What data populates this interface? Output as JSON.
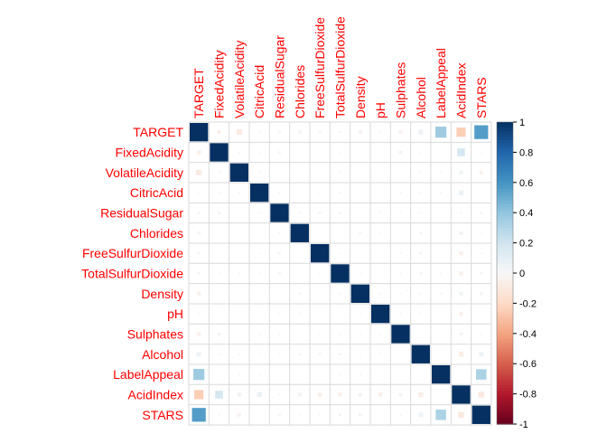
{
  "chart_data": {
    "type": "heatmap",
    "variables": [
      "TARGET",
      "FixedAcidity",
      "VolatileAcidity",
      "CitricAcid",
      "ResidualSugar",
      "Chlorides",
      "FreeSulfurDioxide",
      "TotalSulfurDioxide",
      "Density",
      "pH",
      "Sulphates",
      "Alcohol",
      "LabelAppeal",
      "AcidIndex",
      "STARS"
    ],
    "matrix": [
      [
        1,
        -0.05,
        -0.09,
        0.01,
        0.02,
        -0.03,
        0.02,
        0.02,
        -0.04,
        -0.01,
        -0.04,
        0.06,
        0.36,
        -0.25,
        0.56
      ],
      [
        -0.05,
        1,
        0.01,
        0.01,
        -0.02,
        0,
        0,
        -0.01,
        0,
        0,
        0.03,
        -0.01,
        0,
        0.18,
        -0.01
      ],
      [
        -0.09,
        0.01,
        1,
        0.01,
        0,
        0,
        0,
        -0.01,
        0,
        0,
        0,
        0.01,
        -0.01,
        0.04,
        -0.04
      ],
      [
        0.01,
        0.01,
        0.01,
        1,
        -0.01,
        0,
        0.01,
        0.01,
        0,
        0,
        -0.01,
        0.01,
        0.01,
        0.07,
        0
      ],
      [
        0.02,
        -0.02,
        0,
        -0.01,
        1,
        -0.01,
        0.02,
        0.02,
        0,
        0.01,
        -0.01,
        -0.01,
        0,
        -0.01,
        0.02
      ],
      [
        -0.03,
        0,
        0,
        0,
        -0.01,
        1,
        0,
        0,
        0.02,
        0.01,
        0,
        -0.02,
        0,
        0.04,
        -0.01
      ],
      [
        0.02,
        0,
        0,
        0.01,
        0.02,
        0,
        1,
        0.01,
        0,
        0,
        0.01,
        -0.02,
        0,
        -0.05,
        0.01
      ],
      [
        0.02,
        -0.01,
        -0.01,
        0.01,
        0.02,
        0,
        0.01,
        1,
        0.01,
        0,
        -0.01,
        -0.02,
        -0.01,
        -0.05,
        0.02
      ],
      [
        -0.04,
        0,
        0,
        0,
        0,
        0.02,
        0,
        0.01,
        1,
        0.01,
        -0.01,
        -0.01,
        -0.01,
        0.04,
        -0.03
      ],
      [
        -0.01,
        0,
        0,
        0,
        0.01,
        0.01,
        0,
        0,
        0.01,
        1,
        0.01,
        -0.01,
        0,
        -0.05,
        0
      ],
      [
        -0.04,
        0.03,
        0,
        -0.01,
        -0.01,
        0,
        0.01,
        -0.01,
        -0.01,
        0.01,
        1,
        0,
        0,
        0.03,
        -0.01
      ],
      [
        0.06,
        -0.01,
        0.01,
        0.01,
        -0.01,
        -0.02,
        -0.02,
        -0.02,
        -0.01,
        -0.01,
        0,
        1,
        0,
        -0.07,
        0.06
      ],
      [
        0.36,
        0,
        -0.01,
        0.01,
        0,
        0,
        0,
        -0.01,
        -0.01,
        0,
        0,
        0,
        1,
        0,
        0.32
      ],
      [
        -0.25,
        0.18,
        0.04,
        0.07,
        -0.01,
        0.04,
        -0.05,
        -0.05,
        0.04,
        -0.05,
        0.03,
        -0.07,
        0,
        1,
        -0.1
      ],
      [
        0.56,
        -0.01,
        -0.04,
        0,
        0.02,
        -0.01,
        0.01,
        0.02,
        -0.03,
        0,
        -0.01,
        0.06,
        0.32,
        -0.1,
        1
      ]
    ],
    "colorbar": {
      "ticks": [
        1,
        0.8,
        0.6,
        0.4,
        0.2,
        0,
        -0.2,
        -0.4,
        -0.6,
        -0.8,
        -1
      ],
      "tick_labels": [
        "1",
        "0.8",
        "0.6",
        "0.4",
        "0.2",
        "0",
        "-0.2",
        "-0.4",
        "-0.6",
        "-0.8",
        "-1"
      ],
      "range": [
        -1,
        1
      ]
    },
    "label_color": "#ff0000",
    "colors": {
      "negative": "#67001f",
      "neutral": "#f7f7f7",
      "positive": "#053061",
      "grid": "#d9d9d9"
    }
  }
}
